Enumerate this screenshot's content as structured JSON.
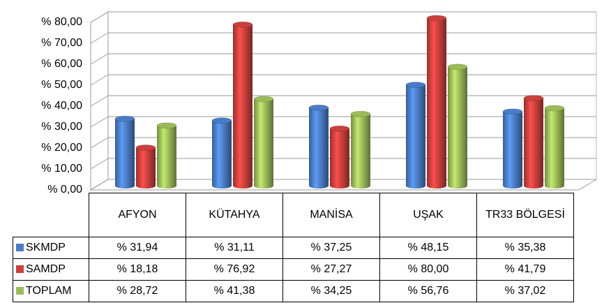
{
  "chart_data": {
    "type": "bar3d",
    "categories": [
      "AFYON",
      "KÜTAHYA",
      "MANİSA",
      "UŞAK",
      "TR33 BÖLGESİ"
    ],
    "series": [
      {
        "name": "SKMDP",
        "color": "#4a7cc4",
        "values": [
          31.94,
          31.11,
          37.25,
          48.15,
          35.38
        ],
        "value_labels": [
          "% 31,94",
          "% 31,11",
          "% 37,25",
          "% 48,15",
          "% 35,38"
        ]
      },
      {
        "name": "SAMDP",
        "color": "#c9403d",
        "values": [
          18.18,
          76.92,
          27.27,
          80.0,
          41.79
        ],
        "value_labels": [
          "% 18,18",
          "% 76,92",
          "% 27,27",
          "% 80,00",
          "% 41,79"
        ]
      },
      {
        "name": "TOPLAM",
        "color": "#9bbb59",
        "values": [
          28.72,
          41.38,
          34.25,
          56.76,
          37.02
        ],
        "value_labels": [
          "% 28,72",
          "% 41,38",
          "% 34,25",
          "% 56,76",
          "% 37,02"
        ]
      }
    ],
    "ylim": [
      0,
      80
    ],
    "yticks": [
      {
        "value": 0,
        "label": "% 0,00"
      },
      {
        "value": 10,
        "label": "% 10,00"
      },
      {
        "value": 20,
        "label": "% 20,00"
      },
      {
        "value": 30,
        "label": "% 30,00"
      },
      {
        "value": 40,
        "label": "% 40,00"
      },
      {
        "value": 50,
        "label": "% 50,00"
      },
      {
        "value": 60,
        "label": "% 60,00"
      },
      {
        "value": 70,
        "label": "% 70,00"
      },
      {
        "value": 80,
        "label": "% 80,00"
      }
    ],
    "grid": true
  }
}
